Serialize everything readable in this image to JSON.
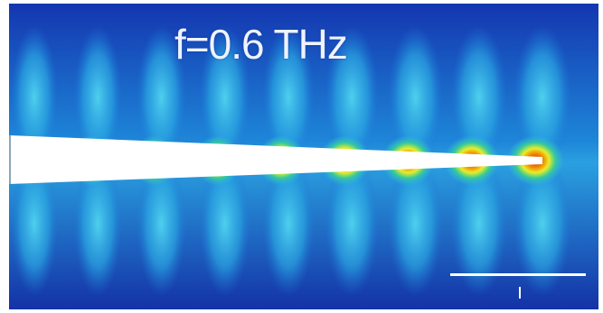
{
  "figure": {
    "title": "f=0.6 THz",
    "colormap": [
      "#1330a8",
      "#1b78d6",
      "#2fb4e8",
      "#36c99a",
      "#e8ee2a",
      "#f0a000",
      "#e81818"
    ],
    "background_color": "#ffffff",
    "probe_color": "#ffffff",
    "hotspot_count": 9
  }
}
